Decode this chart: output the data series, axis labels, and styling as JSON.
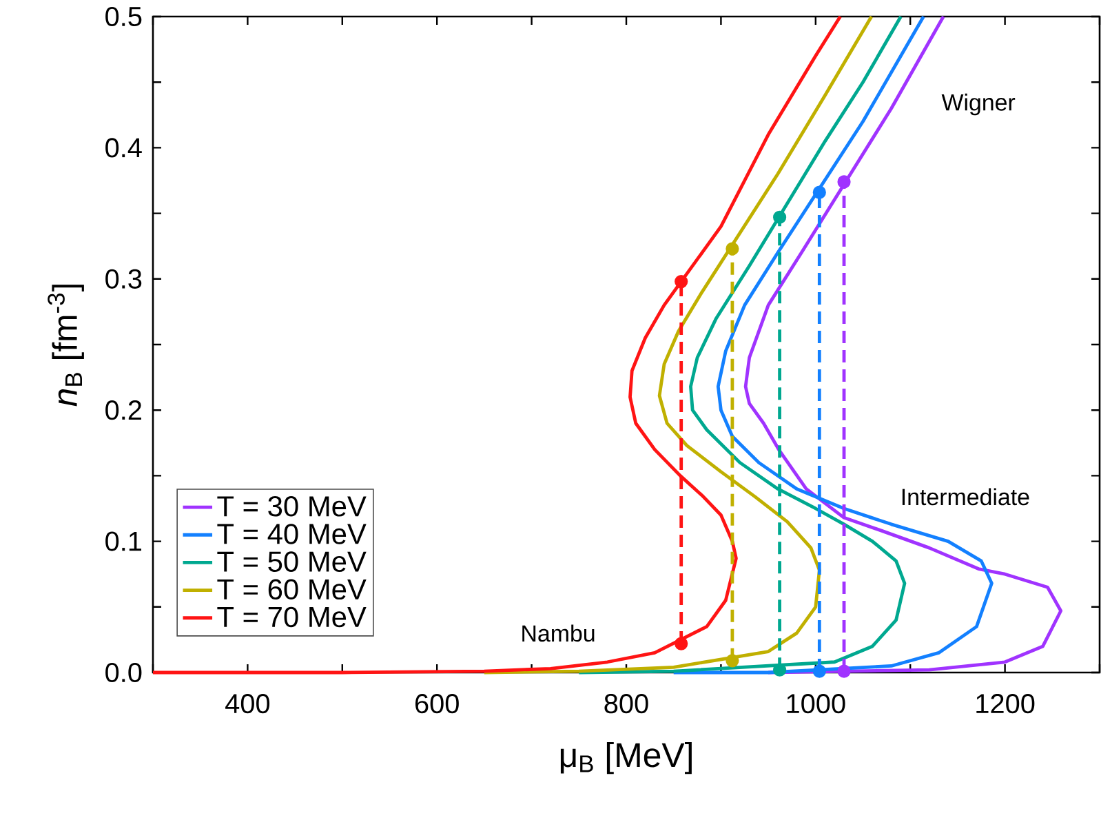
{
  "chart_data": {
    "type": "line",
    "xlabel": "μ$_{B}$ [MeV]",
    "ylabel": "*n*$_{B}$ [fm$^{-3}$]",
    "xlim": [
      300,
      1300
    ],
    "ylim": [
      0,
      0.5
    ],
    "xticks": [
      {
        "value": 300,
        "label": null
      },
      400,
      {
        "value": 500,
        "label": null
      },
      600,
      {
        "value": 700,
        "label": null
      },
      800,
      {
        "value": 900,
        "label": null
      },
      1000,
      {
        "value": 1100,
        "label": null
      },
      1200,
      {
        "value": 1300,
        "label": null
      }
    ],
    "yticks": [
      {
        "value": 0,
        "label": "0.0"
      },
      {
        "value": 0.05,
        "label": null
      },
      0.1,
      {
        "value": 0.15,
        "label": null
      },
      0.2,
      {
        "value": 0.25,
        "label": null
      },
      0.3,
      {
        "value": 0.35,
        "label": null
      },
      0.4,
      {
        "value": 0.45,
        "label": null
      },
      0.5
    ],
    "legend": "bottom left",
    "grid": false,
    "series": [
      {
        "name": "T = 30 MeV",
        "color": "#a033ff",
        "x": [
          950,
          1120,
          1200,
          1240,
          1259,
          1245,
          1200,
          1172,
          1120,
          1070,
          1030,
          990,
          961,
          945,
          930,
          926,
          930,
          950,
          985,
          1080,
          1135
        ],
        "values": [
          0,
          0.002,
          0.008,
          0.02,
          0.047,
          0.065,
          0.075,
          0.079,
          0.095,
          0.108,
          0.118,
          0.14,
          0.17,
          0.19,
          0.205,
          0.218,
          0.24,
          0.28,
          0.32,
          0.43,
          0.5
        ]
      },
      {
        "name": "T = 40 MeV",
        "color": "#1380ff",
        "x": [
          850,
          950,
          1080,
          1130,
          1170,
          1186,
          1175,
          1140,
          1080,
          1030,
          980,
          940,
          912,
          900,
          897,
          905,
          925,
          960,
          1050,
          1114
        ],
        "values": [
          0,
          0,
          0.005,
          0.015,
          0.035,
          0.068,
          0.085,
          0.1,
          0.113,
          0.125,
          0.14,
          0.16,
          0.18,
          0.2,
          0.218,
          0.245,
          0.28,
          0.32,
          0.42,
          0.5
        ]
      },
      {
        "name": "T = 50 MeV",
        "color": "#00a890",
        "x": [
          750,
          850,
          1020,
          1060,
          1085,
          1094,
          1085,
          1060,
          1030,
          1000,
          960,
          920,
          885,
          870,
          868,
          875,
          895,
          930,
          1010,
          1050,
          1090
        ],
        "values": [
          0,
          0.001,
          0.008,
          0.02,
          0.04,
          0.068,
          0.085,
          0.1,
          0.113,
          0.125,
          0.14,
          0.16,
          0.185,
          0.2,
          0.218,
          0.24,
          0.27,
          0.31,
          0.405,
          0.45,
          0.5
        ]
      },
      {
        "name": "T = 60 MeV",
        "color": "#c0b000",
        "x": [
          650,
          750,
          850,
          950,
          980,
          1000,
          1004,
          995,
          970,
          936,
          900,
          864,
          843,
          835,
          840,
          855,
          880,
          960,
          1010,
          1059
        ],
        "values": [
          0,
          0.001,
          0.004,
          0.016,
          0.03,
          0.05,
          0.078,
          0.095,
          0.115,
          0.134,
          0.153,
          0.173,
          0.19,
          0.211,
          0.235,
          0.26,
          0.29,
          0.38,
          0.44,
          0.5
        ]
      },
      {
        "name": "T = 70 MeV",
        "color": "#ff1414",
        "x": [
          300,
          500,
          650,
          720,
          780,
          830,
          885,
          905,
          916,
          912,
          900,
          880,
          857,
          830,
          810,
          804,
          806,
          820,
          840,
          900,
          950,
          1000,
          1026
        ],
        "values": [
          0,
          0,
          0.001,
          0.003,
          0.008,
          0.015,
          0.035,
          0.055,
          0.087,
          0.1,
          0.12,
          0.135,
          0.15,
          0.17,
          0.19,
          0.21,
          0.23,
          0.255,
          0.28,
          0.34,
          0.41,
          0.47,
          0.5
        ]
      },
      {
        "color": "#a033ff",
        "line_style": "dashed",
        "marker": "circle",
        "x": [
          1030,
          1030
        ],
        "values": [
          0.001,
          0.374
        ]
      },
      {
        "color": "#1380ff",
        "line_style": "dashed",
        "marker": "circle",
        "x": [
          1004,
          1004
        ],
        "values": [
          0.001,
          0.366
        ]
      },
      {
        "color": "#00a890",
        "line_style": "dashed",
        "marker": "circle",
        "x": [
          962,
          962
        ],
        "values": [
          0.002,
          0.347
        ]
      },
      {
        "color": "#c0b000",
        "line_style": "dashed",
        "marker": "circle",
        "x": [
          912,
          912
        ],
        "values": [
          0.009,
          0.323
        ]
      },
      {
        "color": "#ff1414",
        "line_style": "dashed",
        "marker": "circle",
        "x": [
          858,
          858
        ],
        "values": [
          0.022,
          0.298
        ]
      }
    ],
    "annotations": [
      "Wigner",
      "Intermediate",
      "Nambu"
    ]
  }
}
